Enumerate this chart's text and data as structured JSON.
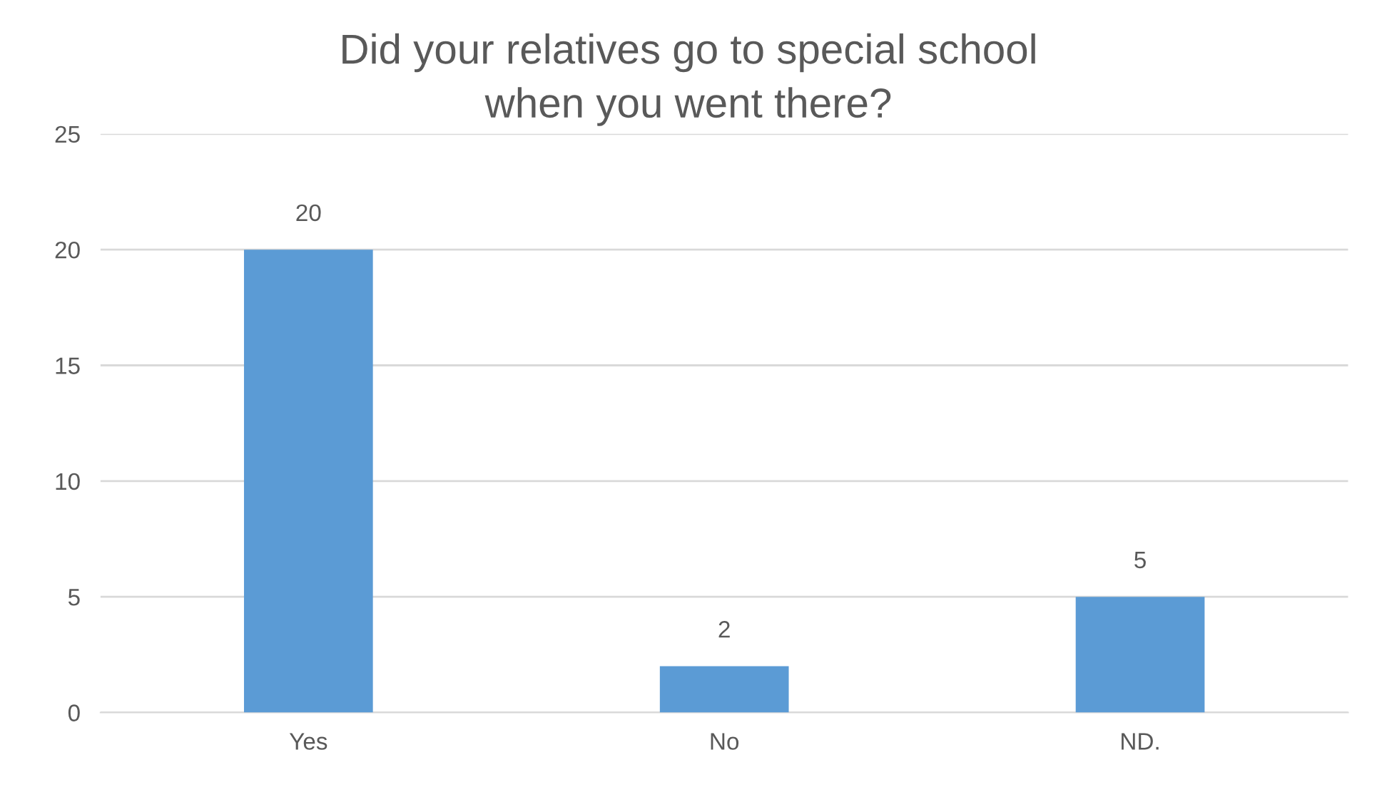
{
  "chart_data": {
    "type": "bar",
    "title": "Did your relatives go to special school\nwhen you went there?",
    "categories": [
      "Yes",
      "No",
      "ND."
    ],
    "values": [
      20,
      2,
      5
    ],
    "color": "#5b9bd5",
    "ylim": [
      0,
      25
    ],
    "yticks": [
      0,
      5,
      10,
      15,
      20,
      25
    ],
    "grid": "y",
    "data_labels": true,
    "legend": false
  }
}
